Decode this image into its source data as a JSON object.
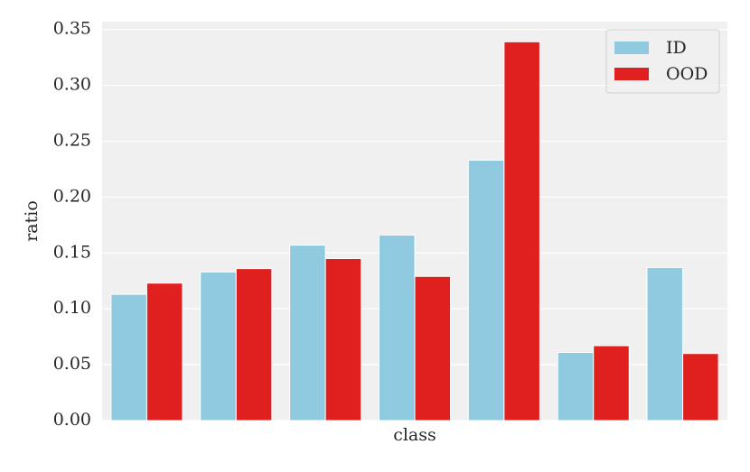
{
  "chart_data": {
    "type": "bar",
    "xlabel": "class",
    "ylabel": "ratio",
    "categories": [
      null,
      null,
      null,
      null,
      null,
      null,
      null
    ],
    "series": [
      {
        "name": "ID",
        "color": "#8fcae1",
        "values": [
          0.113,
          0.133,
          0.157,
          0.166,
          0.233,
          0.061,
          0.137
        ]
      },
      {
        "name": "OOD",
        "color": "#e01f1f",
        "values": [
          0.123,
          0.136,
          0.145,
          0.129,
          0.339,
          0.067,
          0.06
        ]
      }
    ],
    "ylim": [
      0,
      0.357
    ],
    "yticks": [
      {
        "value": 0,
        "label": "0.00"
      },
      {
        "value": 0.05,
        "label": "0.05"
      },
      {
        "value": 0.1,
        "label": "0.10"
      },
      {
        "value": 0.15,
        "label": "0.15"
      },
      {
        "value": 0.2,
        "label": "0.20"
      },
      {
        "value": 0.25,
        "label": "0.25"
      },
      {
        "value": 0.3,
        "label": "0.30"
      },
      {
        "value": 0.35,
        "label": "0.35"
      }
    ],
    "grid": true,
    "legend": "upper right"
  }
}
